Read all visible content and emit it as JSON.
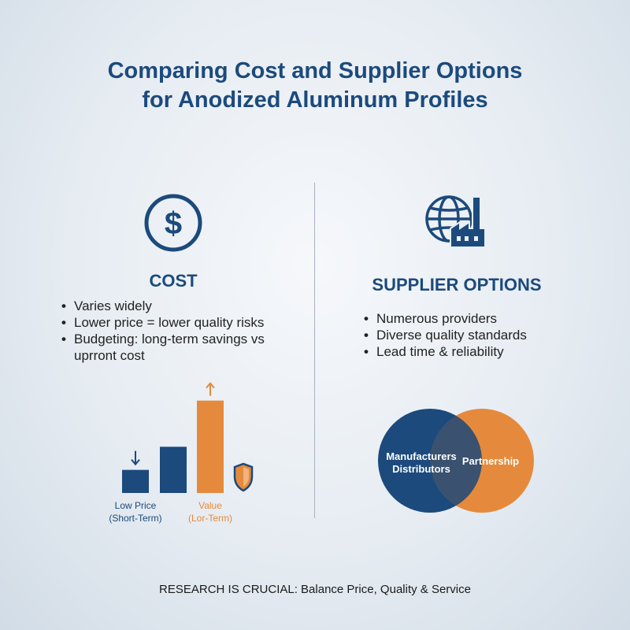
{
  "title": {
    "line1": "Comparing Cost and Supplier Options",
    "line2": "for Anodized Aluminum Profiles"
  },
  "colors": {
    "navy": "#1c4a7c",
    "orange": "#e58a3c",
    "background": "#e6ecf2"
  },
  "cost": {
    "icon": "dollar-circle-icon",
    "heading": "COST",
    "bullets": [
      "Varies widely",
      "Lower price = lower quality risks",
      "Budgeting: long-term savings vs uprront cost"
    ]
  },
  "suppliers": {
    "icon": "globe-factory-icon",
    "heading": "SUPPLIER OPTIONS",
    "bullets": [
      "Numerous providers",
      "Diverse quality standards",
      "Lead time & reliability"
    ],
    "venn": {
      "left_line1": "Manufacturers",
      "left_line2": "Distributors",
      "right_label": "Partnership"
    }
  },
  "chart_data": {
    "type": "bar",
    "categories": [
      "Low Price",
      "",
      "Value"
    ],
    "values": [
      1,
      2,
      4
    ],
    "bar_colors": [
      "#1c4a7c",
      "#1c4a7c",
      "#e58a3c"
    ],
    "ylim": [
      0,
      4.5
    ],
    "labels": {
      "low_line1": "Low Price",
      "low_line2": "(Short-Term)",
      "value_line1": "Value",
      "value_line2": "(Lor-Term)"
    },
    "annotations": [
      "down-arrow-icon",
      "up-arrow-icon",
      "shield-icon"
    ]
  },
  "footer": "RESEARCH IS CRUCIAL: Balance Price, Quality & Service"
}
